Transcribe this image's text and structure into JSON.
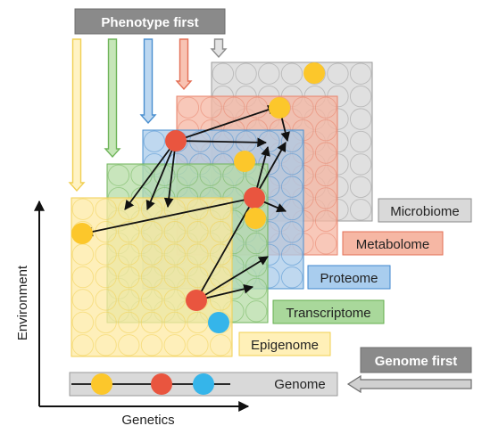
{
  "approaches": {
    "phenotype_first": "Phenotype first",
    "genome_first": "Genome first"
  },
  "axes": {
    "x_label": "Genetics",
    "y_label": "Environment"
  },
  "layers": [
    {
      "key": "microbiome",
      "label": "Microbiome",
      "fill": "#d6d6d6",
      "stroke": "#9a9a9a",
      "label_fill": "#d9d9d9",
      "label_stroke": "#8c8c8c"
    },
    {
      "key": "metabolome",
      "label": "Metabolome",
      "fill": "#f5b6a2",
      "stroke": "#e8826a",
      "label_fill": "#f6b7a4",
      "label_stroke": "#e36f55"
    },
    {
      "key": "proteome",
      "label": "Proteome",
      "fill": "#a9cbea",
      "stroke": "#4a8fcf",
      "label_fill": "#a9cdee",
      "label_stroke": "#3f86cf"
    },
    {
      "key": "transcriptome",
      "label": "Transcriptome",
      "fill": "#b5dca5",
      "stroke": "#6fb45a",
      "label_fill": "#a9d89b",
      "label_stroke": "#64ae4e"
    },
    {
      "key": "epigenome",
      "label": "Epigenome",
      "fill": "#fde9a3",
      "stroke": "#f1cf52",
      "label_fill": "#fff0b8",
      "label_stroke": "#f2cf4f"
    }
  ],
  "genome": {
    "label": "Genome",
    "fill": "#d9d9d9"
  },
  "colors": {
    "yellow_marker": "#fcc72b",
    "red_marker": "#e9553f",
    "blue_marker": "#35b5ea",
    "arrow": "#111111",
    "label_gray": "#8a8a8a"
  }
}
